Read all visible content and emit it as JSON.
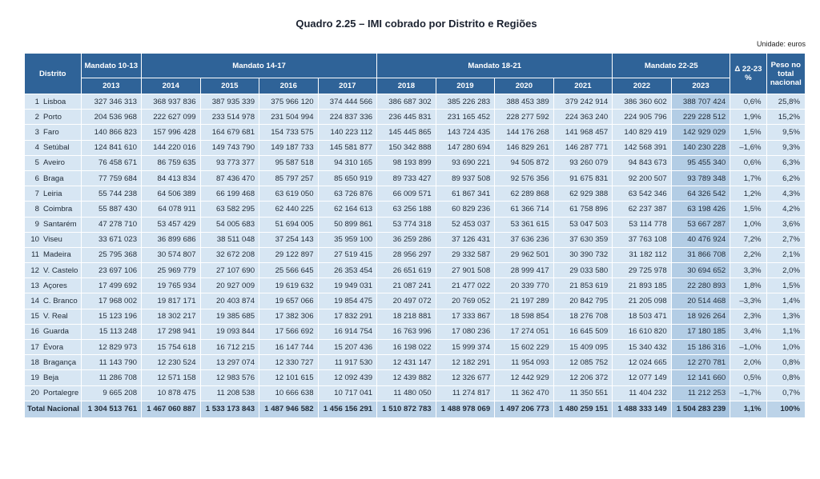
{
  "title": "Quadro 2.25 – IMI cobrado por Distrito e Regiões",
  "unit": "Unidade: euros",
  "headers": {
    "distrito": "Distrito",
    "mandatos": [
      "Mandato 10-13",
      "Mandato 14-17",
      "Mandato 18-21",
      "Mandato 22-25"
    ],
    "delta": "Δ 22-23 %",
    "peso": "Peso no total nacional",
    "years": [
      "2013",
      "2014",
      "2015",
      "2016",
      "2017",
      "2018",
      "2019",
      "2020",
      "2021",
      "2022",
      "2023"
    ]
  },
  "rows": [
    {
      "n": "1",
      "name": "Lisboa",
      "values": [
        "327 346 313",
        "368 937 836",
        "387 935 339",
        "375 966 120",
        "374 444 566",
        "386 687 302",
        "385 226 283",
        "388 453 389",
        "379 242 914",
        "386 360 602",
        "388 707 424"
      ],
      "delta": "0,6%",
      "peso": "25,8%"
    },
    {
      "n": "2",
      "name": "Porto",
      "values": [
        "204 536 968",
        "222 627 099",
        "233 514 978",
        "231 504 994",
        "224 837 336",
        "236 445 831",
        "231 165 452",
        "228 277 592",
        "224 363 240",
        "224 905 796",
        "229 228 512"
      ],
      "delta": "1,9%",
      "peso": "15,2%"
    },
    {
      "n": "3",
      "name": "Faro",
      "values": [
        "140 866 823",
        "157 996 428",
        "164 679 681",
        "154 733 575",
        "140 223 112",
        "145 445 865",
        "143 724 435",
        "144 176 268",
        "141 968 457",
        "140 829 419",
        "142 929 029"
      ],
      "delta": "1,5%",
      "peso": "9,5%"
    },
    {
      "n": "4",
      "name": "Setúbal",
      "values": [
        "124 841 610",
        "144 220 016",
        "149 743 790",
        "149 187 733",
        "145 581 877",
        "150 342 888",
        "147 280 694",
        "146 829 261",
        "146 287 771",
        "142 568 391",
        "140 230 228"
      ],
      "delta": "–1,6%",
      "peso": "9,3%"
    },
    {
      "n": "5",
      "name": "Aveiro",
      "values": [
        "76 458 671",
        "86 759 635",
        "93 773 377",
        "95 587 518",
        "94 310 165",
        "98 193 899",
        "93 690 221",
        "94 505 872",
        "93 260 079",
        "94 843 673",
        "95 455 340"
      ],
      "delta": "0,6%",
      "peso": "6,3%"
    },
    {
      "n": "6",
      "name": "Braga",
      "values": [
        "77 759 684",
        "84 413 834",
        "87 436 470",
        "85 797 257",
        "85 650 919",
        "89 733 427",
        "89 937 508",
        "92 576 356",
        "91 675 831",
        "92 200 507",
        "93 789 348"
      ],
      "delta": "1,7%",
      "peso": "6,2%"
    },
    {
      "n": "7",
      "name": "Leiria",
      "values": [
        "55 744 238",
        "64 506 389",
        "66 199 468",
        "63 619 050",
        "63 726 876",
        "66 009 571",
        "61 867 341",
        "62 289 868",
        "62 929 388",
        "63 542 346",
        "64 326 542"
      ],
      "delta": "1,2%",
      "peso": "4,3%"
    },
    {
      "n": "8",
      "name": "Coimbra",
      "values": [
        "55 887 430",
        "64 078 911",
        "63 582 295",
        "62 440 225",
        "62 164 613",
        "63 256 188",
        "60 829 236",
        "61 366 714",
        "61 758 896",
        "62 237 387",
        "63 198 426"
      ],
      "delta": "1,5%",
      "peso": "4,2%"
    },
    {
      "n": "9",
      "name": "Santarém",
      "values": [
        "47 278 710",
        "53 457 429",
        "54 005 683",
        "51 694 005",
        "50 899 861",
        "53 774 318",
        "52 453 037",
        "53 361 615",
        "53 047 503",
        "53 114 778",
        "53 667 287"
      ],
      "delta": "1,0%",
      "peso": "3,6%"
    },
    {
      "n": "10",
      "name": "Viseu",
      "values": [
        "33 671 023",
        "36 899 686",
        "38 511 048",
        "37 254 143",
        "35 959 100",
        "36 259 286",
        "37 126 431",
        "37 636 236",
        "37 630 359",
        "37 763 108",
        "40 476 924"
      ],
      "delta": "7,2%",
      "peso": "2,7%"
    },
    {
      "n": "11",
      "name": "Madeira",
      "values": [
        "25 795 368",
        "30 574 807",
        "32 672 208",
        "29 122 897",
        "27 519 415",
        "28 956 297",
        "29 332 587",
        "29 962 501",
        "30 390 732",
        "31 182 112",
        "31 866 708"
      ],
      "delta": "2,2%",
      "peso": "2,1%"
    },
    {
      "n": "12",
      "name": "V. Castelo",
      "values": [
        "23 697 106",
        "25 969 779",
        "27 107 690",
        "25 566 645",
        "26 353 454",
        "26 651 619",
        "27 901 508",
        "28 999 417",
        "29 033 580",
        "29 725 978",
        "30 694 652"
      ],
      "delta": "3,3%",
      "peso": "2,0%"
    },
    {
      "n": "13",
      "name": "Açores",
      "values": [
        "17 499 692",
        "19 765 934",
        "20 927 009",
        "19 619 632",
        "19 949 031",
        "21 087 241",
        "21 477 022",
        "20 339 770",
        "21 853 619",
        "21 893 185",
        "22 280 893"
      ],
      "delta": "1,8%",
      "peso": "1,5%"
    },
    {
      "n": "14",
      "name": "C. Branco",
      "values": [
        "17 968 002",
        "19 817 171",
        "20 403 874",
        "19 657 066",
        "19 854 475",
        "20 497 072",
        "20 769 052",
        "21 197 289",
        "20 842 795",
        "21 205 098",
        "20 514 468"
      ],
      "delta": "–3,3%",
      "peso": "1,4%"
    },
    {
      "n": "15",
      "name": "V. Real",
      "values": [
        "15 123 196",
        "18 302 217",
        "19 385 685",
        "17 382 306",
        "17 832 291",
        "18 218 881",
        "17 333 867",
        "18 598 854",
        "18 276 708",
        "18 503 471",
        "18 926 264"
      ],
      "delta": "2,3%",
      "peso": "1,3%"
    },
    {
      "n": "16",
      "name": "Guarda",
      "values": [
        "15 113 248",
        "17 298 941",
        "19 093 844",
        "17 566 692",
        "16 914 754",
        "16 763 996",
        "17 080 236",
        "17 274 051",
        "16 645 509",
        "16 610 820",
        "17 180 185"
      ],
      "delta": "3,4%",
      "peso": "1,1%"
    },
    {
      "n": "17",
      "name": "Évora",
      "values": [
        "12 829 973",
        "15 754 618",
        "16 712 215",
        "16 147 744",
        "15 207 436",
        "16 198 022",
        "15 999 374",
        "15 602 229",
        "15 409 095",
        "15 340 432",
        "15 186 316"
      ],
      "delta": "–1,0%",
      "peso": "1,0%"
    },
    {
      "n": "18",
      "name": "Bragança",
      "values": [
        "11 143 790",
        "12 230 524",
        "13 297 074",
        "12 330 727",
        "11 917 530",
        "12 431 147",
        "12 182 291",
        "11 954 093",
        "12 085 752",
        "12 024 665",
        "12 270 781"
      ],
      "delta": "2,0%",
      "peso": "0,8%"
    },
    {
      "n": "19",
      "name": "Beja",
      "values": [
        "11 286 708",
        "12 571 158",
        "12 983 576",
        "12 101 615",
        "12 092 439",
        "12 439 882",
        "12 326 677",
        "12 442 929",
        "12 206 372",
        "12 077 149",
        "12 141 660"
      ],
      "delta": "0,5%",
      "peso": "0,8%"
    },
    {
      "n": "20",
      "name": "Portalegre",
      "values": [
        "9 665 208",
        "10 878 475",
        "11 208 538",
        "10 666 638",
        "10 717 041",
        "11 480 050",
        "11 274 817",
        "11 362 470",
        "11 350 551",
        "11 404 232",
        "11 212 253"
      ],
      "delta": "–1,7%",
      "peso": "0,7%"
    }
  ],
  "total": {
    "name": "Total Nacional",
    "values": [
      "1 304 513 761",
      "1 467 060 887",
      "1 533 173 843",
      "1 487 946 582",
      "1 456 156 291",
      "1 510 872 783",
      "1 488 978 069",
      "1 497 206 773",
      "1 480 259 151",
      "1 488 333 149",
      "1 504 283 239"
    ],
    "delta": "1,1%",
    "peso": "100%"
  }
}
